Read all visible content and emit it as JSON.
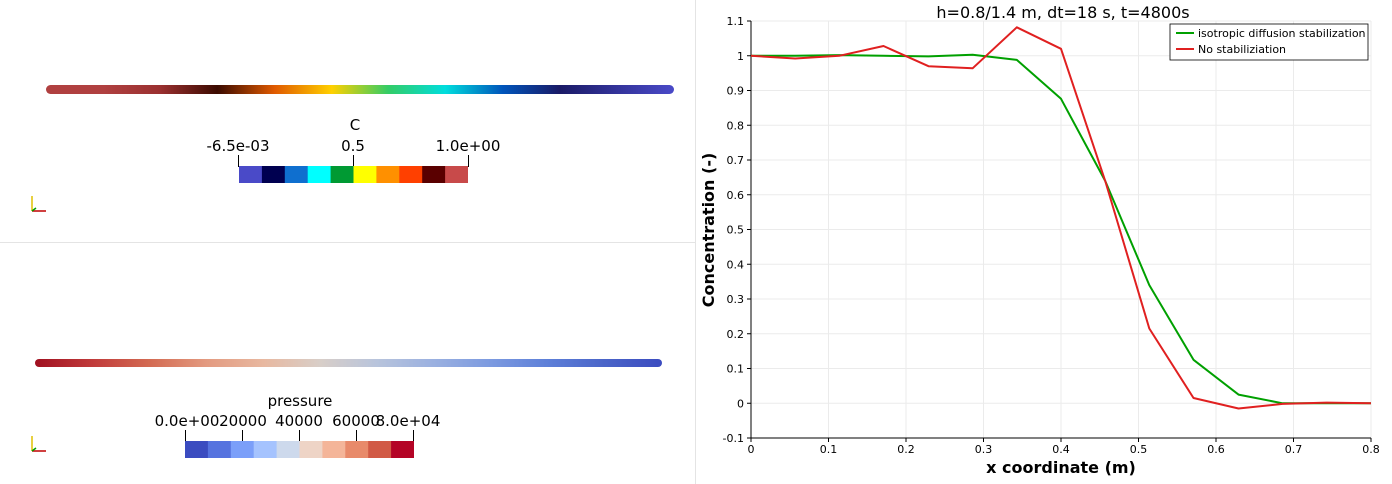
{
  "left_top": {
    "colorbar": {
      "title": "C",
      "labels": [
        "-6.5e-03",
        "0.5",
        "1.0e+00"
      ],
      "colors": [
        "#4a4ac8",
        "#000050",
        "#0f6fcf",
        "#00ffff",
        "#009a33",
        "#ffff00",
        "#ff9000",
        "#ff4000",
        "#5a0000",
        "#c84a4a"
      ]
    },
    "bar_colors": [
      "#b04040",
      "#b04040",
      "#9a3030",
      "#3b0a00",
      "#e05a00",
      "#ffd000",
      "#33cc66",
      "#00dddd",
      "#0055bb",
      "#1a1a66",
      "#33339a",
      "#4a4ac8"
    ]
  },
  "left_bottom": {
    "colorbar": {
      "title": "pressure",
      "labels": [
        "0.0e+00",
        "20000",
        "40000",
        "60000",
        "8.0e+04"
      ],
      "colors": [
        "#3b4cc0",
        "#5673df",
        "#7b9ff9",
        "#a5c3fe",
        "#cdd9ec",
        "#eed4c6",
        "#f4b599",
        "#e88a6a",
        "#d15a45",
        "#b40426"
      ]
    },
    "bar_colors": [
      "#a01020",
      "#c03a3a",
      "#d36a52",
      "#e39a80",
      "#e8b8a0",
      "#d8cec8",
      "#b8c4dc",
      "#9ab0e0",
      "#7c9ae0",
      "#5d7fd8",
      "#4a64c8",
      "#3b4cc0"
    ]
  },
  "chart_data": {
    "type": "line",
    "title": "h=0.8/1.4 m, dt=18 s, t=4800s",
    "xlabel": "x coordinate (m)",
    "ylabel": "Concentration (-)",
    "xlim": [
      0,
      0.8
    ],
    "ylim": [
      -0.1,
      1.1
    ],
    "xticks": [
      "0",
      "0.1",
      "0.2",
      "0.3",
      "0.4",
      "0.5",
      "0.6",
      "0.7",
      "0.8"
    ],
    "yticks": [
      "-0.1",
      "0",
      "0.1",
      "0.2",
      "0.3",
      "0.4",
      "0.5",
      "0.6",
      "0.7",
      "0.8",
      "0.9",
      "1",
      "1.1"
    ],
    "grid": true,
    "legend_position": "top-right",
    "series": [
      {
        "name": "isotropic diffusion stabilization",
        "color": "#00a000",
        "x": [
          0,
          0.057,
          0.114,
          0.171,
          0.229,
          0.286,
          0.343,
          0.4,
          0.457,
          0.514,
          0.571,
          0.629,
          0.686,
          0.743,
          0.8
        ],
        "y": [
          1.0,
          1.0,
          1.002,
          1.0,
          0.998,
          1.003,
          0.988,
          0.876,
          0.64,
          0.34,
          0.125,
          0.025,
          0.0,
          0.0,
          0.0
        ]
      },
      {
        "name": "No  stabiliziation",
        "color": "#e02020",
        "x": [
          0,
          0.057,
          0.114,
          0.171,
          0.229,
          0.286,
          0.343,
          0.4,
          0.457,
          0.514,
          0.571,
          0.629,
          0.686,
          0.743,
          0.8
        ],
        "y": [
          1.0,
          0.992,
          1.0,
          1.028,
          0.97,
          0.964,
          1.082,
          1.02,
          0.64,
          0.215,
          0.015,
          -0.015,
          -0.002,
          0.002,
          0.0
        ]
      }
    ]
  }
}
